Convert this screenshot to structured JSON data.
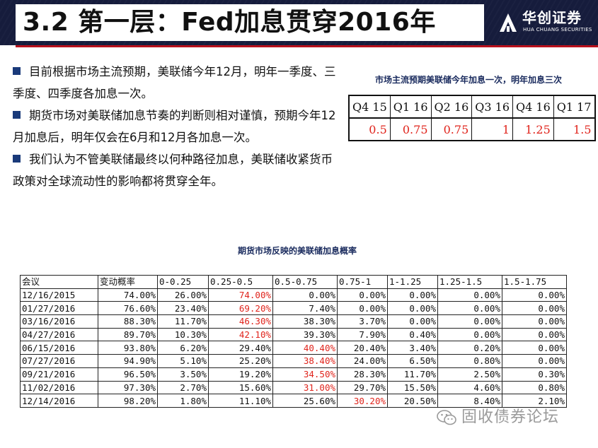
{
  "header": {
    "title": "3.2 第一层：Fed加息贯穿2016年",
    "logo_cn": "华创证券",
    "logo_en": "HUA CHUANG SECURITIES"
  },
  "bullets": [
    "目前根据市场主流预期，美联储今年12月，明年一季度、三季度、四季度各加息一次。",
    "期货市场对美联储加息节奏的判断则相对谨慎，预期今年12月加息后，明年仅会在6月和12月各加息一次。",
    "我们认为不管美联储最终以何种路径加息，美联储收紧货币政策对全球流动性的影响都将贯穿全年。"
  ],
  "table1": {
    "caption": "市场主流预期美联储今年加息一次，明年加息三次",
    "quarters": [
      "Q4 15",
      "Q1 16",
      "Q2 16",
      "Q3 16",
      "Q4 16",
      "Q1 17"
    ],
    "values": [
      "0.5",
      "0.75",
      "0.75",
      "1",
      "1.25",
      "1.5"
    ]
  },
  "table2": {
    "caption": "期货市场反映的美联储加息概率",
    "headers": [
      "会议",
      "变动概率",
      "0-0.25",
      "0.25-0.5",
      "0.5-0.75",
      "0.75-1",
      "1-1.25",
      "1.25-1.5",
      "1.5-1.75"
    ],
    "rows": [
      [
        "12/16/2015",
        "74.00%",
        "26.00%",
        "74.00%",
        "0.00%",
        "0.00%",
        "0.00%",
        "0.00%",
        "0.00%"
      ],
      [
        "01/27/2016",
        "76.60%",
        "23.40%",
        "69.20%",
        "7.40%",
        "0.00%",
        "0.00%",
        "0.00%",
        "0.00%"
      ],
      [
        "03/16/2016",
        "88.30%",
        "11.70%",
        "46.30%",
        "38.30%",
        "3.70%",
        "0.00%",
        "0.00%",
        "0.00%"
      ],
      [
        "04/27/2016",
        "89.70%",
        "10.30%",
        "42.10%",
        "39.30%",
        "7.90%",
        "0.40%",
        "0.00%",
        "0.00%"
      ],
      [
        "06/15/2016",
        "93.80%",
        "6.20%",
        "29.40%",
        "40.40%",
        "20.40%",
        "3.40%",
        "0.20%",
        "0.00%"
      ],
      [
        "07/27/2016",
        "94.90%",
        "5.10%",
        "25.20%",
        "38.40%",
        "24.00%",
        "6.50%",
        "0.80%",
        "0.00%"
      ],
      [
        "09/21/2016",
        "96.50%",
        "3.50%",
        "19.20%",
        "34.50%",
        "28.30%",
        "11.70%",
        "2.50%",
        "0.30%"
      ],
      [
        "11/02/2016",
        "97.30%",
        "2.70%",
        "15.60%",
        "31.00%",
        "29.70%",
        "15.50%",
        "4.60%",
        "0.80%"
      ],
      [
        "12/14/2016",
        "98.20%",
        "1.80%",
        "11.10%",
        "25.60%",
        "30.20%",
        "20.50%",
        "8.40%",
        "2.10%"
      ]
    ],
    "highlight_col": [
      3,
      3,
      3,
      3,
      4,
      4,
      4,
      4,
      5
    ]
  },
  "watermark": {
    "text": "固收债券论坛"
  },
  "colors": {
    "header_bg": "#161c3c",
    "accent_red": "#e0241c",
    "bullet_blue": "#1a3a7a"
  }
}
